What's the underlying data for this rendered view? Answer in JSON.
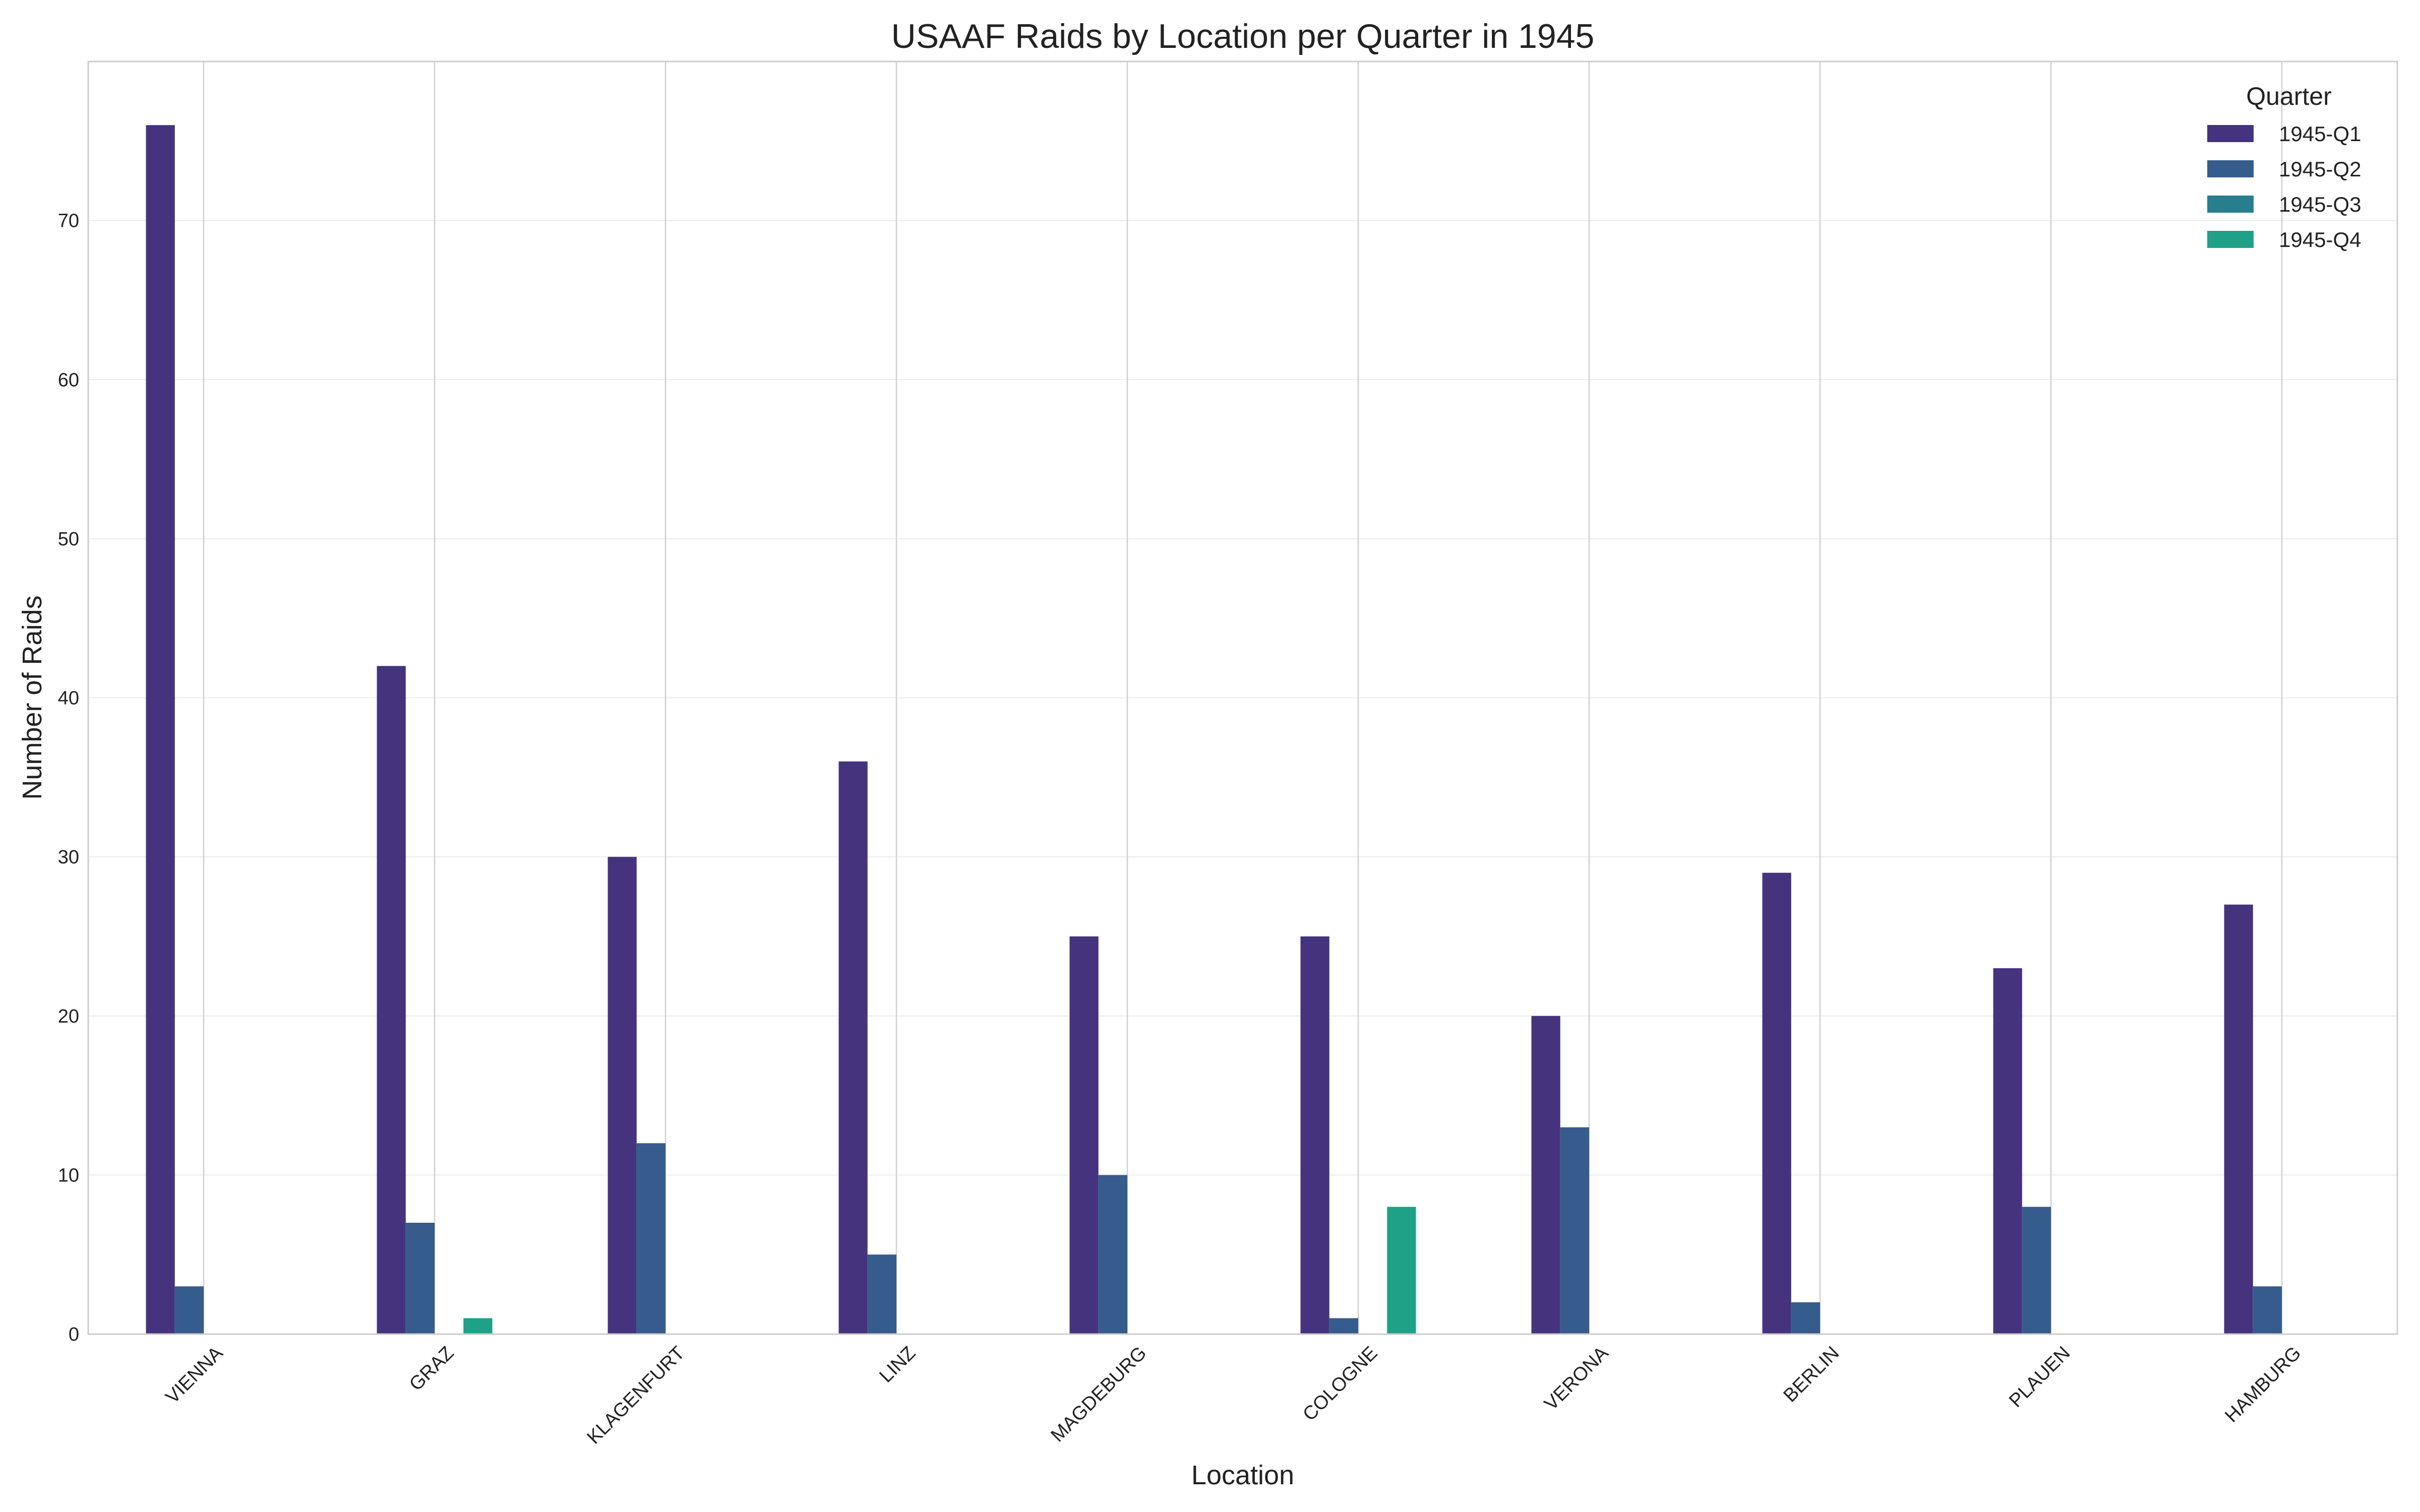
{
  "chart_data": {
    "type": "bar",
    "title": "USAAF Raids by Location per Quarter in 1945",
    "xlabel": "Location",
    "ylabel": "Number of Raids",
    "categories": [
      "VIENNA",
      "GRAZ",
      "KLAGENFURT",
      "LINZ",
      "MAGDEBURG",
      "COLOGNE",
      "VERONA",
      "BERLIN",
      "PLAUEN",
      "HAMBURG"
    ],
    "series": [
      {
        "name": "1945-Q1",
        "color": "#45337e",
        "values": [
          76,
          42,
          30,
          36,
          25,
          25,
          20,
          29,
          23,
          27
        ]
      },
      {
        "name": "1945-Q2",
        "color": "#365c8d",
        "values": [
          3,
          7,
          12,
          5,
          10,
          1,
          13,
          2,
          8,
          3
        ]
      },
      {
        "name": "1945-Q3",
        "color": "#277f8e",
        "values": [
          0,
          0,
          0,
          0,
          0,
          0,
          0,
          0,
          0,
          0
        ]
      },
      {
        "name": "1945-Q4",
        "color": "#1fa187",
        "values": [
          0,
          1,
          0,
          0,
          0,
          8,
          0,
          0,
          0,
          0
        ]
      }
    ],
    "ylim": [
      0,
      80
    ],
    "yticks": [
      0,
      10,
      20,
      30,
      40,
      50,
      60,
      70
    ],
    "grid": true,
    "legend": {
      "title": "Quarter",
      "placement": "top-right"
    }
  }
}
